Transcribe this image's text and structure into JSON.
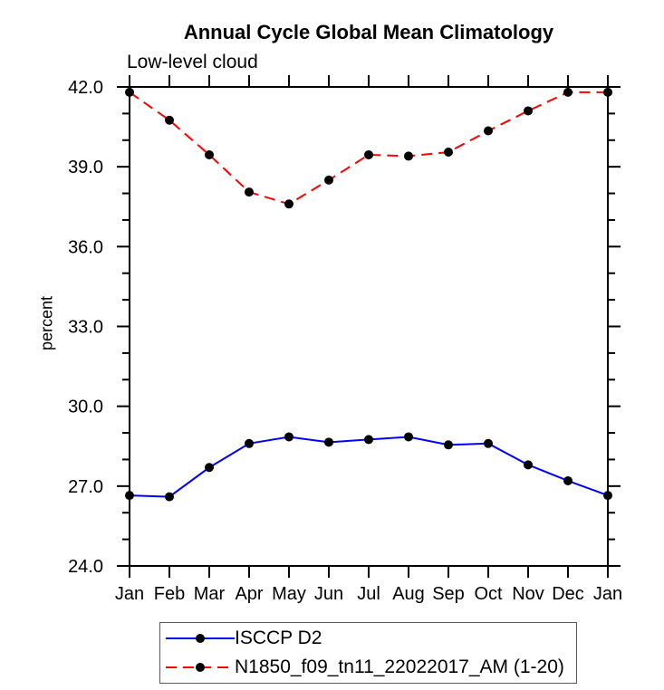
{
  "chart": {
    "title": "Annual Cycle Global Mean Climatology",
    "subtitle": "Low-level cloud",
    "ylabel": "percent"
  },
  "chart_data": {
    "type": "line",
    "title": "Annual Cycle Global Mean Climatology",
    "subtitle": "Low-level cloud",
    "xlabel": "",
    "ylabel": "percent",
    "categories": [
      "Jan",
      "Feb",
      "Mar",
      "Apr",
      "May",
      "Jun",
      "Jul",
      "Aug",
      "Sep",
      "Oct",
      "Nov",
      "Dec",
      "Jan"
    ],
    "ylim": [
      24.0,
      42.0
    ],
    "ytick_step": 3.0,
    "ytick_minor_step": 1.0,
    "ytick_labels": [
      "24.0",
      "27.0",
      "30.0",
      "33.0",
      "36.0",
      "39.0",
      "42.0"
    ],
    "grid": false,
    "legend_position": "bottom",
    "axis_color": "#000000",
    "marker_color": "#000000",
    "series": [
      {
        "name": "ISCCP D2",
        "color": "#0000ff",
        "line_style": "solid",
        "marker": "filled-circle",
        "marker_color": "#000000",
        "values": [
          26.65,
          26.6,
          27.7,
          28.6,
          28.85,
          28.65,
          28.75,
          28.85,
          28.55,
          28.6,
          27.8,
          27.2,
          26.65
        ]
      },
      {
        "name": "N1850_f09_tn11_22022017_AM (1-20)",
        "color": "#ff0000",
        "line_style": "dashed",
        "marker": "filled-circle",
        "marker_color": "#000000",
        "values": [
          41.8,
          40.75,
          39.45,
          38.05,
          37.6,
          38.5,
          39.45,
          39.4,
          39.55,
          40.35,
          41.1,
          41.8,
          41.8
        ]
      }
    ]
  }
}
